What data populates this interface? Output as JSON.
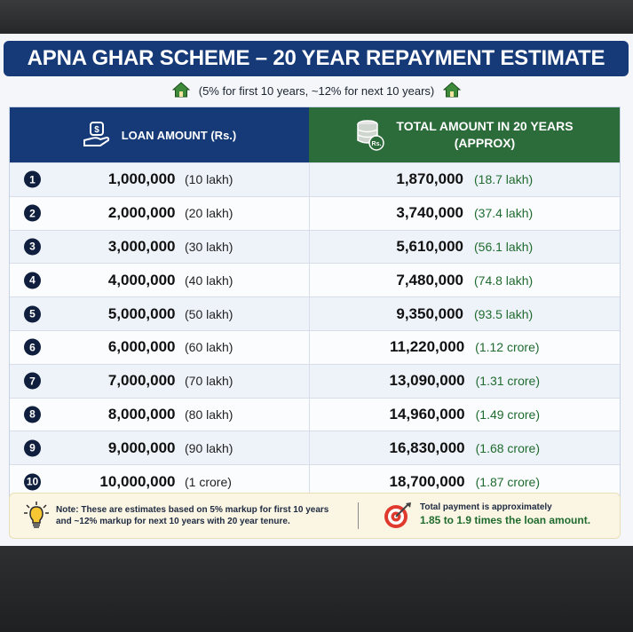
{
  "title": "APNA GHAR SCHEME – 20 YEAR REPAYMENT ESTIMATE",
  "subtitle": "(5% for first 10 years, ~12% for next 10 years)",
  "table": {
    "col_loan": "LOAN AMOUNT (Rs.)",
    "col_total_line1": "TOTAL AMOUNT IN 20 YEARS",
    "col_total_line2": "(APPROX)",
    "rows": [
      {
        "n": "1",
        "loan": "1,000,000",
        "loan_words": "(10 lakh)",
        "total": "1,870,000",
        "total_words": "(18.7 lakh)"
      },
      {
        "n": "2",
        "loan": "2,000,000",
        "loan_words": "(20 lakh)",
        "total": "3,740,000",
        "total_words": "(37.4 lakh)"
      },
      {
        "n": "3",
        "loan": "3,000,000",
        "loan_words": "(30 lakh)",
        "total": "5,610,000",
        "total_words": "(56.1 lakh)"
      },
      {
        "n": "4",
        "loan": "4,000,000",
        "loan_words": "(40 lakh)",
        "total": "7,480,000",
        "total_words": "(74.8 lakh)"
      },
      {
        "n": "5",
        "loan": "5,000,000",
        "loan_words": "(50 lakh)",
        "total": "9,350,000",
        "total_words": "(93.5 lakh)"
      },
      {
        "n": "6",
        "loan": "6,000,000",
        "loan_words": "(60 lakh)",
        "total": "11,220,000",
        "total_words": "(1.12 crore)"
      },
      {
        "n": "7",
        "loan": "7,000,000",
        "loan_words": "(70 lakh)",
        "total": "13,090,000",
        "total_words": "(1.31 crore)"
      },
      {
        "n": "8",
        "loan": "8,000,000",
        "loan_words": "(80 lakh)",
        "total": "14,960,000",
        "total_words": "(1.49 crore)"
      },
      {
        "n": "9",
        "loan": "9,000,000",
        "loan_words": "(90 lakh)",
        "total": "16,830,000",
        "total_words": "(1.68 crore)"
      },
      {
        "n": "10",
        "loan": "10,000,000",
        "loan_words": "(1 crore)",
        "total": "18,700,000",
        "total_words": "(1.87 crore)"
      }
    ]
  },
  "footer": {
    "note_line1": "Note: These are estimates based on 5% markup for first 10 years",
    "note_line2": "and ~12% markup for next 10 years with 20 year tenure.",
    "total_line1": "Total payment is approximately",
    "total_line2": "1.85 to 1.9 times the loan amount."
  },
  "icons": {
    "header_left": "money-hand-icon",
    "header_right": "coin-stack-icon",
    "subtitle": "house-icon",
    "note": "lightbulb-icon",
    "total": "target-icon"
  },
  "colors": {
    "title_bg": "#163a78",
    "loan_header_bg": "#163a78",
    "total_header_bg": "#2c6b3a",
    "accent_green": "#1f6b2e"
  }
}
